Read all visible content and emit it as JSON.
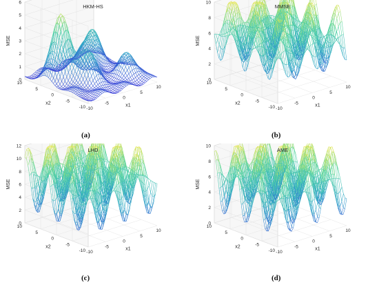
{
  "figure": {
    "captions": [
      "(a)",
      "(b)",
      "(c)",
      "(d)"
    ]
  },
  "chart_data": [
    {
      "type": "surface",
      "title": "HKM-HS",
      "caption": "(a)",
      "xlabel": "x1",
      "ylabel": "x2",
      "zlabel": "MSE",
      "xlim": [
        -10,
        10
      ],
      "ylim": [
        -10,
        10
      ],
      "zlim": [
        0,
        6
      ],
      "xticks": [
        "-10",
        "-5",
        "0",
        "5",
        "10"
      ],
      "yticks": [
        "-10",
        "-5",
        "0",
        "5",
        "10"
      ],
      "zticks": [
        "0",
        "1",
        "2",
        "3",
        "4",
        "5",
        "6"
      ],
      "colormap": [
        "#3b3bd9",
        "#2fa5c8",
        "#4fd3a3",
        "#f2e84f"
      ],
      "peaks": [
        {
          "x1": -6,
          "x2": 3,
          "mse": 5.2
        },
        {
          "x1": -3,
          "x2": -2,
          "mse": 2.6
        },
        {
          "x1": 2,
          "x2": 4,
          "mse": 2.3
        },
        {
          "x1": 6,
          "x2": 6,
          "mse": 2.4
        },
        {
          "x1": 7,
          "x2": -4,
          "mse": 1.7
        }
      ]
    },
    {
      "type": "surface",
      "title": "MMSE",
      "caption": "(b)",
      "xlabel": "x1",
      "ylabel": "x2",
      "zlabel": "MSE",
      "xlim": [
        -10,
        10
      ],
      "ylim": [
        -10,
        10
      ],
      "zlim": [
        0,
        10
      ],
      "xticks": [
        "-10",
        "-5",
        "0",
        "5",
        "10"
      ],
      "yticks": [
        "-10",
        "-5",
        "0",
        "5",
        "10"
      ],
      "zticks": [
        "0",
        "2",
        "4",
        "6",
        "8",
        "10"
      ],
      "colormap": [
        "#3b3bd9",
        "#2fa5c8",
        "#4fd3a3",
        "#f2e84f"
      ],
      "peaks": [
        {
          "x1": -6,
          "x2": 6,
          "mse": 7.5
        },
        {
          "x1": -2,
          "x2": 2,
          "mse": 8.0
        },
        {
          "x1": 2,
          "x2": -3,
          "mse": 7.2
        },
        {
          "x1": 6,
          "x2": 5,
          "mse": 7.8
        },
        {
          "x1": -6,
          "x2": -5,
          "mse": 5.5
        }
      ]
    },
    {
      "type": "surface",
      "title": "LHD",
      "caption": "(c)",
      "xlabel": "x1",
      "ylabel": "x2",
      "zlabel": "MSE",
      "xlim": [
        -10,
        10
      ],
      "ylim": [
        -10,
        10
      ],
      "zlim": [
        0,
        12
      ],
      "xticks": [
        "-10",
        "-5",
        "0",
        "5",
        "10"
      ],
      "yticks": [
        "-10",
        "-5",
        "0",
        "5",
        "10"
      ],
      "zticks": [
        "0",
        "2",
        "4",
        "6",
        "8",
        "10",
        "12"
      ],
      "colormap": [
        "#3b3bd9",
        "#2fa5c8",
        "#4fd3a3",
        "#f2e84f"
      ],
      "peaks": [
        {
          "x1": -5,
          "x2": 5,
          "mse": 11.0
        },
        {
          "x1": 0,
          "x2": 0,
          "mse": 11.5
        },
        {
          "x1": 5,
          "x2": -5,
          "mse": 10.5
        },
        {
          "x1": 6,
          "x2": 6,
          "mse": 10.0
        }
      ]
    },
    {
      "type": "surface",
      "title": "AME",
      "caption": "(d)",
      "xlabel": "x1",
      "ylabel": "x2",
      "zlabel": "MSE",
      "xlim": [
        -10,
        10
      ],
      "ylim": [
        -10,
        10
      ],
      "zlim": [
        0,
        10
      ],
      "xticks": [
        "-10",
        "-5",
        "0",
        "5",
        "10"
      ],
      "yticks": [
        "-10",
        "-5",
        "0",
        "5",
        "10"
      ],
      "zticks": [
        "0",
        "2",
        "4",
        "6",
        "8",
        "10"
      ],
      "colormap": [
        "#3b3bd9",
        "#2fa5c8",
        "#4fd3a3",
        "#f2e84f"
      ],
      "peaks": [
        {
          "x1": -5,
          "x2": 5,
          "mse": 8.5
        },
        {
          "x1": 0,
          "x2": 0,
          "mse": 9.0
        },
        {
          "x1": 5,
          "x2": -5,
          "mse": 8.2
        }
      ]
    }
  ]
}
